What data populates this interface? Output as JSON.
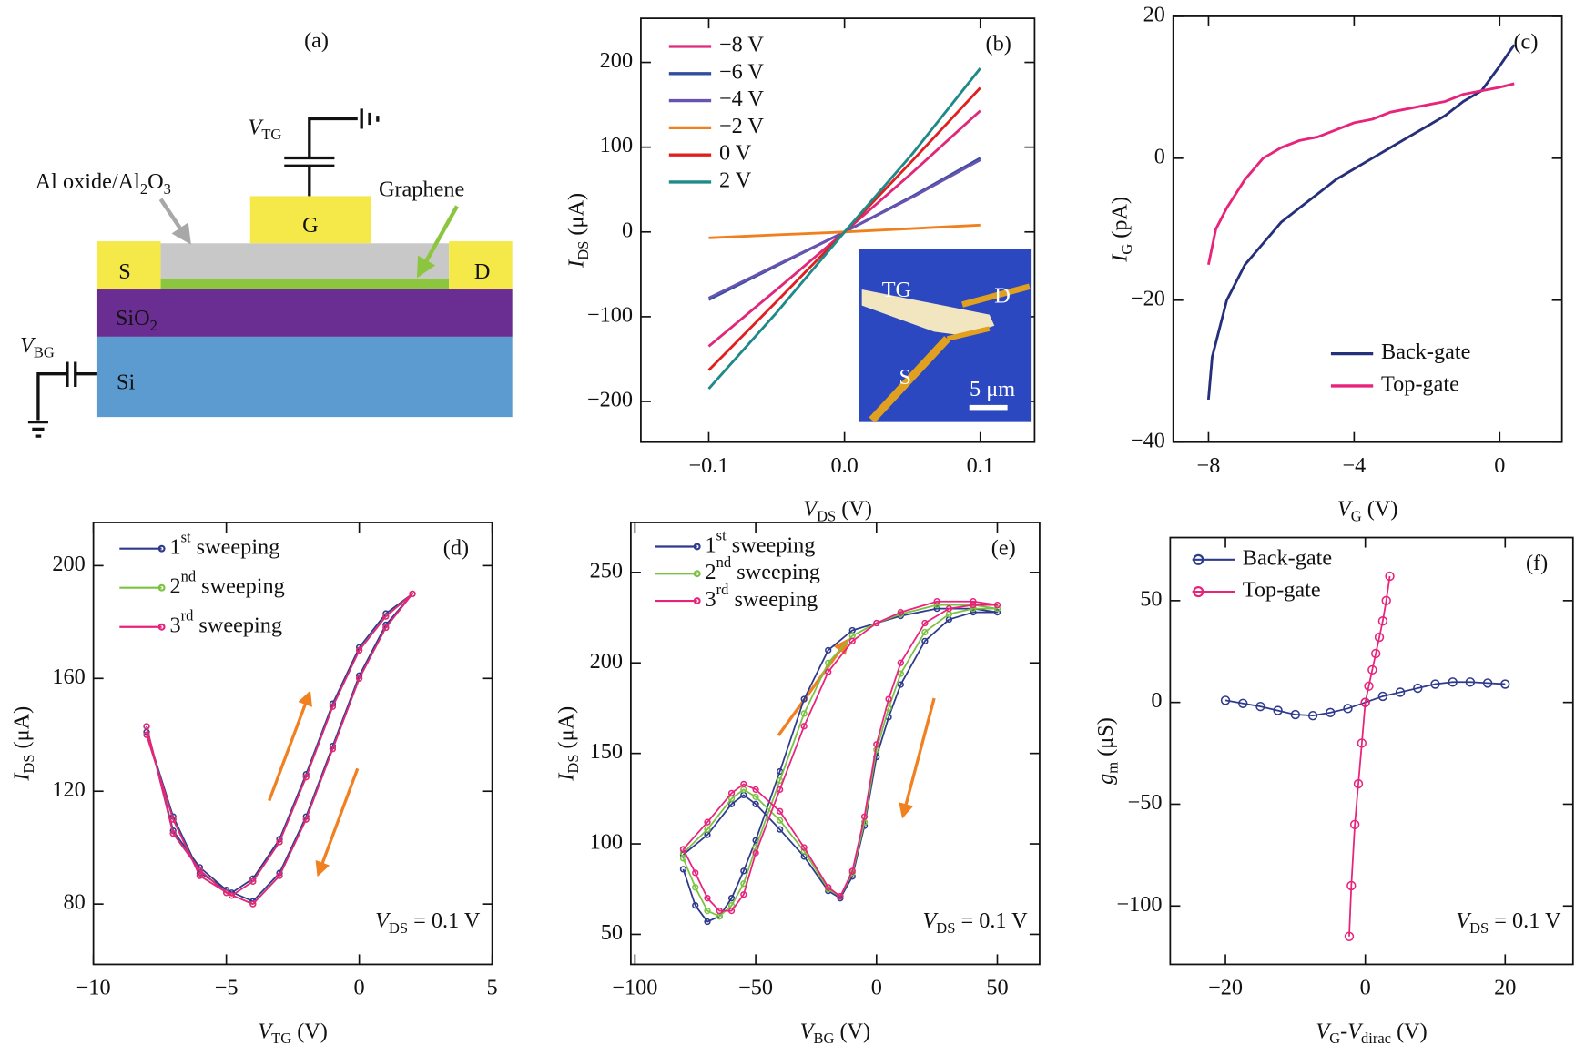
{
  "diagram": {
    "label": "(a)",
    "top_gate": [
      {
        "text": "V",
        "italic": true
      },
      {
        "text": "TG",
        "sub": true
      }
    ],
    "oxide": [
      {
        "text": "Al oxide/Al"
      },
      {
        "text": "2",
        "sub": true
      },
      {
        "text": "O"
      },
      {
        "text": "3",
        "sub": true
      }
    ],
    "graphene": "Graphene",
    "gate": "G",
    "source": "S",
    "drain": "D",
    "sio2": [
      {
        "text": "SiO"
      },
      {
        "text": "2",
        "sub": true
      }
    ],
    "si": "Si",
    "back_gate": [
      {
        "text": "V",
        "italic": true
      },
      {
        "text": "BG",
        "sub": true
      }
    ]
  },
  "chart_data": [
    {
      "type": "line",
      "label": "(b)",
      "x_label": [
        {
          "text": "V",
          "italic": true
        },
        {
          "text": "DS",
          "sub": true
        },
        {
          "text": " (V)"
        }
      ],
      "y_label": [
        {
          "text": "I",
          "italic": true
        },
        {
          "text": "DS",
          "sub": true
        },
        {
          "text": " (μA)"
        }
      ],
      "x": [
        -0.1,
        -0.05,
        0,
        0.05,
        0.1
      ],
      "series": [
        {
          "name": "−8 V",
          "color": "#e0287a",
          "values": [
            -135,
            -68,
            0,
            70,
            143
          ]
        },
        {
          "name": "−6 V",
          "color": "#2f4e9e",
          "values": [
            -80,
            -40,
            0,
            42,
            87
          ]
        },
        {
          "name": "−4 V",
          "color": "#6a52b0",
          "values": [
            -78,
            -39,
            0,
            41,
            85
          ]
        },
        {
          "name": "−2 V",
          "color": "#f0801e",
          "values": [
            -7,
            -3.5,
            0,
            4,
            8
          ]
        },
        {
          "name": "0 V",
          "color": "#e02020",
          "values": [
            -163,
            -82,
            0,
            84,
            170
          ]
        },
        {
          "name": "2 V",
          "color": "#1f8a88",
          "values": [
            -185,
            -95,
            0,
            92,
            193
          ]
        }
      ],
      "xlim": [
        -0.15,
        0.14
      ],
      "ylim": [
        -248,
        252
      ],
      "xticks": [
        {
          "value": -0.1,
          "label": "−0.1"
        },
        {
          "value": 0,
          "label": "0.0"
        },
        0.1
      ],
      "yticks": [
        {
          "value": -200,
          "label": "−200"
        },
        {
          "value": -100,
          "label": "−100"
        },
        0,
        100,
        200
      ],
      "legend": "upper left",
      "inset_labels": [
        "TG",
        "D",
        "S",
        "5 μm"
      ]
    },
    {
      "type": "line",
      "label": "(c)",
      "x_label": [
        {
          "text": "V",
          "italic": true
        },
        {
          "text": "G",
          "sub": true
        },
        {
          "text": " (V)"
        }
      ],
      "y_label": [
        {
          "text": "I",
          "italic": true
        },
        {
          "text": "G",
          "sub": true
        },
        {
          "text": " (pA)"
        }
      ],
      "series": [
        {
          "name": "Back-gate",
          "color": "#26307a",
          "x": [
            -8,
            -7.9,
            -7.5,
            -7,
            -6.5,
            -6,
            -5.5,
            -5,
            -4.5,
            -4,
            -3.5,
            -3,
            -2.5,
            -2,
            -1.5,
            -1,
            -0.5,
            0,
            0.4
          ],
          "values": [
            -34,
            -28,
            -20,
            -15,
            -12,
            -9,
            -7,
            -5,
            -3,
            -1.5,
            0,
            1.5,
            3,
            4.5,
            6,
            8,
            9.5,
            13,
            16
          ]
        },
        {
          "name": "Top-gate",
          "color": "#e8237b",
          "x": [
            -8,
            -7.8,
            -7.5,
            -7,
            -6.5,
            -6,
            -5.5,
            -5,
            -4.5,
            -4,
            -3.5,
            -3,
            -2.5,
            -2,
            -1.5,
            -1,
            -0.5,
            0,
            0.4
          ],
          "values": [
            -15,
            -10,
            -7,
            -3,
            0,
            1.5,
            2.5,
            3,
            4,
            5,
            5.5,
            6.5,
            7,
            7.5,
            8,
            9,
            9.5,
            10,
            10.5
          ]
        }
      ],
      "xlim": [
        -8.97,
        1.71
      ],
      "ylim": [
        -40,
        20
      ],
      "xticks": [
        {
          "value": -8,
          "label": "−8"
        },
        {
          "value": -4,
          "label": "−4"
        },
        0
      ],
      "yticks": [
        {
          "value": -40,
          "label": "−40"
        },
        {
          "value": -20,
          "label": "−20"
        },
        0,
        20
      ],
      "legend": "lower right"
    },
    {
      "type": "line",
      "label": "(d)",
      "x_label": [
        {
          "text": "V",
          "italic": true
        },
        {
          "text": "TG",
          "sub": true
        },
        {
          "text": " (V)"
        }
      ],
      "y_label": [
        {
          "text": "I",
          "italic": true
        },
        {
          "text": "DS",
          "sub": true
        },
        {
          "text": " (μA)"
        }
      ],
      "x": [
        -8,
        -7,
        -6,
        -5,
        -4,
        -3,
        -2,
        -1,
        0,
        1,
        2,
        1,
        0,
        -1,
        -2,
        -3,
        -4,
        -4.8,
        -6,
        -7,
        -8
      ],
      "series": [
        {
          "name": [
            {
              "text": "1"
            },
            {
              "text": "st",
              "sup": true
            },
            {
              "text": " sweeping"
            }
          ],
          "color": "#2e3a8c",
          "marker": "circle",
          "values": [
            143,
            106,
            93,
            85,
            81,
            91,
            111,
            136,
            161,
            179,
            190,
            183,
            171,
            151,
            126,
            103,
            89,
            84,
            91,
            111,
            141
          ]
        },
        {
          "name": [
            {
              "text": "2"
            },
            {
              "text": "nd",
              "sup": true
            },
            {
              "text": " sweeping"
            }
          ],
          "color": "#7cc242",
          "marker": "circle",
          "values": [
            143,
            105,
            92,
            84,
            80,
            90,
            110,
            135,
            160,
            178,
            190,
            182,
            170,
            150,
            125,
            102,
            88,
            83,
            90,
            110,
            140
          ]
        },
        {
          "name": [
            {
              "text": "3"
            },
            {
              "text": "rd",
              "sup": true
            },
            {
              "text": " sweeping"
            }
          ],
          "color": "#e8237b",
          "marker": "circle",
          "values": [
            143,
            105,
            92,
            84,
            80,
            90,
            110,
            135,
            160,
            178,
            190,
            182,
            170,
            150,
            125,
            102,
            88,
            83,
            90,
            110,
            140
          ]
        }
      ],
      "xlim": [
        -10,
        5
      ],
      "ylim": [
        58.6,
        215.3
      ],
      "xticks": [
        {
          "value": -10,
          "label": "−10"
        },
        {
          "value": -5,
          "label": "−5"
        },
        0,
        5
      ],
      "yticks": [
        80,
        120,
        160,
        200
      ],
      "legend": "upper left",
      "annotation": [
        {
          "text": "V",
          "italic": true
        },
        {
          "text": "DS",
          "sub": true
        },
        {
          "text": " = 0.1 V"
        }
      ]
    },
    {
      "type": "line",
      "label": "(e)",
      "x_label": [
        {
          "text": "V",
          "italic": true
        },
        {
          "text": "BG",
          "sub": true
        },
        {
          "text": " (V)"
        }
      ],
      "y_label": [
        {
          "text": "I",
          "italic": true
        },
        {
          "text": "DS",
          "sub": true
        },
        {
          "text": " (μA)"
        }
      ],
      "x": [
        -80,
        -75,
        -70,
        -65,
        -60,
        -55,
        -50,
        -40,
        -30,
        -20,
        -10,
        0,
        10,
        25,
        40,
        50,
        40,
        30,
        20,
        10,
        5,
        0,
        -5,
        -10,
        -15,
        -20,
        -30,
        -40,
        -50,
        -55,
        -60,
        -70,
        -80
      ],
      "series": [
        {
          "name": [
            {
              "text": "1"
            },
            {
              "text": "st",
              "sup": true
            },
            {
              "text": " sweeping"
            }
          ],
          "color": "#2e3a8c",
          "marker": "circle",
          "values": [
            86,
            66,
            57,
            60,
            70,
            85,
            102,
            140,
            180,
            207,
            218,
            222,
            226,
            230,
            230,
            228,
            228,
            224,
            212,
            188,
            170,
            148,
            110,
            82,
            70,
            74,
            93,
            108,
            122,
            127,
            122,
            105,
            94
          ]
        },
        {
          "name": [
            {
              "text": "2"
            },
            {
              "text": "nd",
              "sup": true
            },
            {
              "text": " sweeping"
            }
          ],
          "color": "#7cc242",
          "marker": "circle",
          "values": [
            92,
            76,
            63,
            60,
            66,
            78,
            98,
            135,
            172,
            200,
            215,
            222,
            227,
            232,
            232,
            230,
            230,
            227,
            217,
            194,
            175,
            152,
            112,
            84,
            71,
            75,
            96,
            113,
            126,
            130,
            125,
            108,
            95
          ]
        },
        {
          "name": [
            {
              "text": "3"
            },
            {
              "text": "rd",
              "sup": true
            },
            {
              "text": " sweeping"
            }
          ],
          "color": "#e8237b",
          "marker": "circle",
          "values": [
            97,
            84,
            70,
            63,
            63,
            72,
            95,
            130,
            165,
            195,
            212,
            222,
            228,
            234,
            234,
            232,
            232,
            230,
            222,
            200,
            180,
            155,
            115,
            85,
            71,
            76,
            98,
            118,
            130,
            133,
            128,
            112,
            97
          ]
        }
      ],
      "xlim": [
        -101.7,
        67.5
      ],
      "ylim": [
        33.4,
        277.6
      ],
      "xticks": [
        {
          "value": -100,
          "label": "−100"
        },
        {
          "value": -50,
          "label": "−50"
        },
        0,
        50
      ],
      "yticks": [
        50,
        100,
        150,
        200,
        250
      ],
      "legend": "upper left",
      "annotation": [
        {
          "text": "V",
          "italic": true
        },
        {
          "text": "DS",
          "sub": true
        },
        {
          "text": " = 0.1 V"
        }
      ]
    },
    {
      "type": "line",
      "label": "(f)",
      "x_label": [
        {
          "text": "V",
          "italic": true
        },
        {
          "text": "G",
          "sub": true
        },
        {
          "text": "-"
        },
        {
          "text": "V",
          "italic": true
        },
        {
          "text": "dirac",
          "sub": true
        },
        {
          "text": " (V)"
        }
      ],
      "y_label": [
        {
          "text": "g",
          "italic": true
        },
        {
          "text": "m",
          "sub": true
        },
        {
          "text": " (μS)"
        }
      ],
      "series": [
        {
          "name": "Back-gate",
          "color": "#2e3a8c",
          "marker": "circle",
          "x": [
            -20,
            -17.5,
            -15,
            -12.5,
            -10,
            -7.5,
            -5,
            -2.5,
            0,
            2.5,
            5,
            7.5,
            10,
            12.5,
            15,
            17.5,
            20
          ],
          "values": [
            1,
            -0.5,
            -2,
            -4,
            -6,
            -6.5,
            -5,
            -3,
            0,
            3,
            5,
            7,
            9,
            10,
            10,
            9.5,
            9
          ]
        },
        {
          "name": "Top-gate",
          "color": "#e8237b",
          "marker": "circle",
          "x": [
            -2.3,
            -2,
            -1.5,
            -1,
            -0.5,
            0,
            0.5,
            1,
            1.5,
            2,
            2.5,
            3,
            3.5
          ],
          "values": [
            -115,
            -90,
            -60,
            -40,
            -20,
            0,
            8,
            16,
            24,
            32,
            40,
            50,
            62
          ]
        }
      ],
      "xlim": [
        -27.9,
        29.7
      ],
      "ylim": [
        -128.7,
        81
      ],
      "xticks": [
        {
          "value": -20,
          "label": "−20"
        },
        0,
        20
      ],
      "yticks": [
        {
          "value": -100,
          "label": "−100"
        },
        {
          "value": -50,
          "label": "−50"
        },
        0,
        50
      ],
      "legend": "upper left",
      "annotation": [
        {
          "text": "V",
          "italic": true
        },
        {
          "text": "DS",
          "sub": true
        },
        {
          "text": " = 0.1 V"
        }
      ]
    }
  ]
}
